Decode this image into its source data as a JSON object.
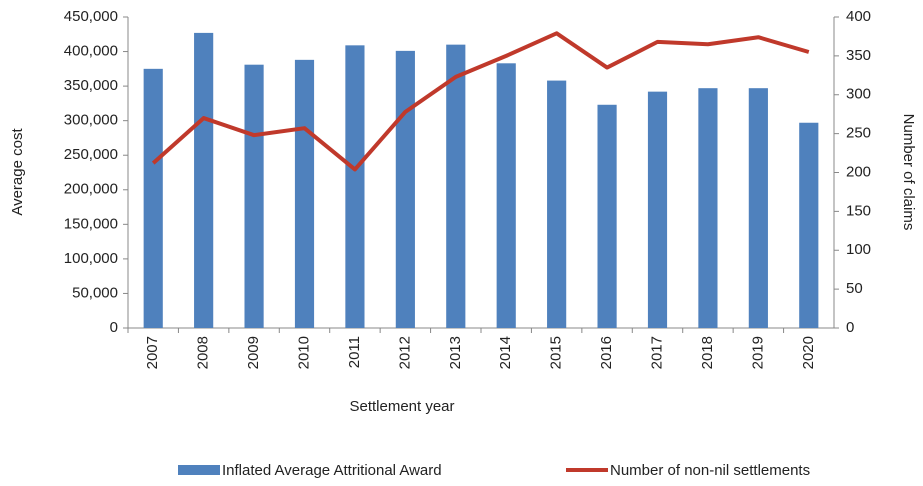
{
  "chart_data": {
    "type": "bar-line",
    "x_label": "Settlement year",
    "y_label": "Average cost",
    "y2_label": "Number of claims",
    "categories": [
      "2007",
      "2008",
      "2009",
      "2010",
      "2011",
      "2012",
      "2013",
      "2014",
      "2015",
      "2016",
      "2017",
      "2018",
      "2019",
      "2020"
    ],
    "series": [
      {
        "name": "Inflated Average Attritional Award",
        "type": "bar",
        "color": "#4f81bd",
        "axis": "y",
        "values": [
          375000,
          427000,
          381000,
          388000,
          409000,
          401000,
          410000,
          383000,
          358000,
          323000,
          342000,
          347000,
          347000,
          297000
        ]
      },
      {
        "name": "Number of non-nil settlements",
        "type": "line",
        "color": "#c0392b",
        "axis": "y2",
        "values": [
          212,
          270,
          248,
          257,
          204,
          278,
          323,
          350,
          379,
          335,
          368,
          365,
          374,
          355
        ]
      }
    ],
    "ylim": [
      0,
      450000
    ],
    "yticks": [
      0,
      {
        "value": 50000,
        "label": "50,000"
      },
      {
        "value": 100000,
        "label": "100,000"
      },
      {
        "value": 150000,
        "label": "150,000"
      },
      {
        "value": 200000,
        "label": "200,000"
      },
      {
        "value": 250000,
        "label": "250,000"
      },
      {
        "value": 300000,
        "label": "300,000"
      },
      {
        "value": 350000,
        "label": "350,000"
      },
      {
        "value": 400000,
        "label": "400,000"
      },
      {
        "value": 450000,
        "label": "450,000"
      }
    ],
    "y2lim": [
      0,
      400
    ],
    "y2ticks": [
      0,
      50,
      100,
      150,
      200,
      250,
      300,
      350,
      400
    ],
    "legend": "bottom"
  }
}
